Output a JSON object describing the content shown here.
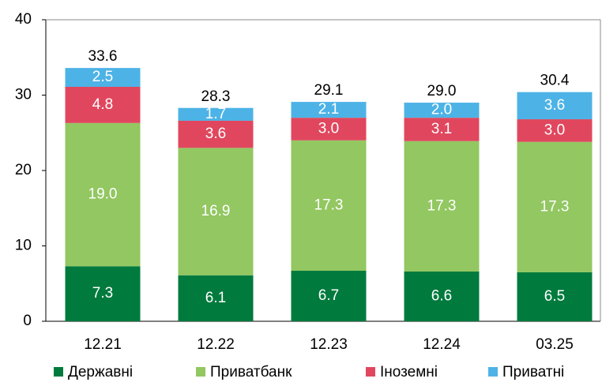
{
  "chart_data": {
    "type": "stacked_bar",
    "categories": [
      "12.21",
      "12.22",
      "12.23",
      "12.24",
      "03.25"
    ],
    "series": [
      {
        "name": "Державні",
        "color": "#007a3d",
        "values": [
          7.3,
          6.1,
          6.7,
          6.6,
          6.5
        ]
      },
      {
        "name": "Приватбанк",
        "color": "#92c761",
        "values": [
          19.0,
          16.9,
          17.3,
          17.3,
          17.3
        ],
        "value_labels": [
          "19.0",
          "16.9",
          "17.3",
          "17.3",
          "17.3"
        ]
      },
      {
        "name": "Іноземні",
        "color": "#e0475e",
        "values": [
          4.8,
          3.6,
          3.0,
          3.1,
          3.0
        ],
        "value_labels": [
          "4.8",
          "3.6",
          "3.0",
          "3.1",
          "3.0"
        ]
      },
      {
        "name": "Приватні",
        "color": "#4db3e6",
        "values": [
          2.5,
          1.7,
          2.1,
          2.0,
          3.6
        ],
        "value_labels": [
          "2.5",
          "1.7",
          "2.1",
          "2.0",
          "3.6"
        ]
      }
    ],
    "totals": [
      33.6,
      28.3,
      29.1,
      29.0,
      30.4
    ],
    "total_labels": [
      "33.6",
      "28.3",
      "29.1",
      "29.0",
      "30.4"
    ],
    "ylim": [
      0,
      40
    ],
    "yticks": [
      0,
      10,
      20,
      30,
      40
    ]
  }
}
